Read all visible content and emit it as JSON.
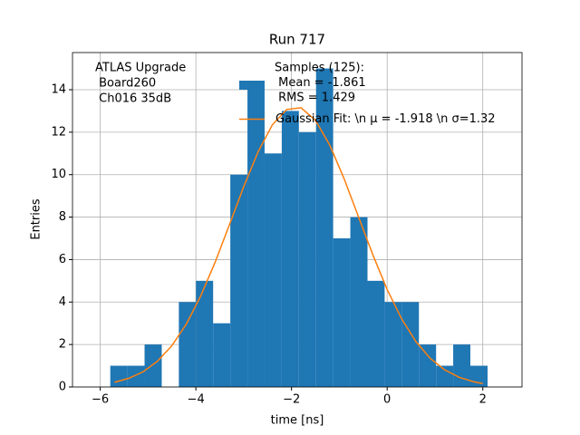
{
  "chart_data": {
    "type": "histogram",
    "title": "Run 717",
    "xlabel": "time [ns]",
    "ylabel": "Entries",
    "annotation": [
      "ATLAS Upgrade",
      " Board260",
      " Ch016 35dB"
    ],
    "bins": [
      -5.79,
      -5.431,
      -5.073,
      -4.714,
      -4.356,
      -3.997,
      -3.639,
      -3.28,
      -2.921,
      -2.563,
      -2.204,
      -1.846,
      -1.487,
      -1.129,
      -0.77,
      -0.411,
      -0.053,
      0.306,
      0.664,
      1.023,
      1.381,
      1.74,
      2.1
    ],
    "series": [
      {
        "name": [
          "Samples (125):",
          " Mean = -1.861",
          " RMS = 1.429"
        ],
        "color": "#1f77b4",
        "type": "histogram",
        "values": [
          1,
          1,
          2,
          0,
          4,
          5,
          3,
          10,
          14,
          11,
          13,
          12,
          15,
          7,
          8,
          5,
          4,
          4,
          2,
          1,
          2,
          1
        ]
      },
      {
        "name": "Gaussian Fit: \\n μ = -1.918 \\n σ=1.32",
        "color": "#ff7f0e",
        "type": "line",
        "x": [
          -5.7,
          -5.4,
          -5.1,
          -4.8,
          -4.5,
          -4.2,
          -3.9,
          -3.6,
          -3.3,
          -3.0,
          -2.7,
          -2.4,
          -2.1,
          -1.8,
          -1.5,
          -1.2,
          -0.9,
          -0.6,
          -0.3,
          0.0,
          0.3,
          0.6,
          0.9,
          1.2,
          1.5,
          1.8,
          2.0
        ],
        "values": [
          0.22,
          0.41,
          0.72,
          1.22,
          1.95,
          2.96,
          4.28,
          5.86,
          7.63,
          9.43,
          11.07,
          12.35,
          13.07,
          13.15,
          12.56,
          11.39,
          9.81,
          8.02,
          6.23,
          4.59,
          3.22,
          2.14,
          1.35,
          0.81,
          0.46,
          0.25,
          0.16
        ]
      }
    ],
    "xlim": [
      -6.58,
      2.82
    ],
    "ylim": [
      0,
      15.75
    ],
    "xticks": [
      {
        "value": -6,
        "label": "−6"
      },
      {
        "value": -4,
        "label": "−4"
      },
      {
        "value": -2,
        "label": "−2"
      },
      0,
      2
    ],
    "yticks": [
      0,
      2,
      4,
      6,
      8,
      10,
      12,
      14
    ],
    "grid": true
  }
}
